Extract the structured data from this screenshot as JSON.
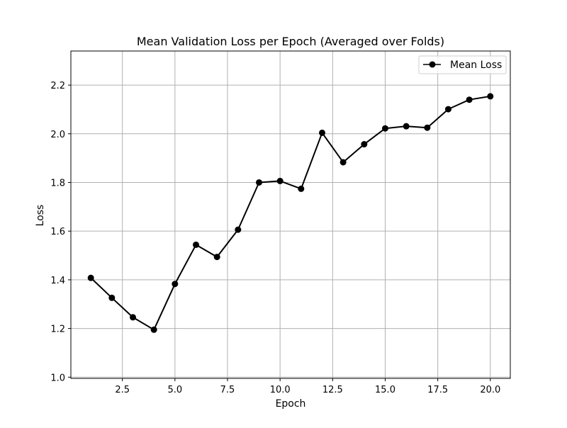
{
  "chart_data": {
    "type": "line",
    "title": "Mean Validation Loss per Epoch (Averaged over Folds)",
    "xlabel": "Epoch",
    "ylabel": "Loss",
    "xlim": [
      0.05,
      20.95
    ],
    "ylim": [
      0.995,
      2.34
    ],
    "xticks": [
      2.5,
      5.0,
      7.5,
      10.0,
      12.5,
      15.0,
      17.5,
      20.0
    ],
    "xtick_labels": [
      "2.5",
      "5.0",
      "7.5",
      "10.0",
      "12.5",
      "15.0",
      "17.5",
      "20.0"
    ],
    "yticks": [
      1.0,
      1.2,
      1.4,
      1.6,
      1.8,
      2.0,
      2.2
    ],
    "ytick_labels": [
      "1.0",
      "1.2",
      "1.4",
      "1.6",
      "1.8",
      "2.0",
      "2.2"
    ],
    "grid": true,
    "legend_position": "upper-right",
    "x": [
      1,
      2,
      3,
      4,
      5,
      6,
      7,
      8,
      9,
      10,
      11,
      12,
      13,
      14,
      15,
      16,
      17,
      18,
      19,
      20
    ],
    "series": [
      {
        "name": "Mean Loss",
        "color": "#000000",
        "marker": "circle",
        "values": [
          1.408,
          1.326,
          1.246,
          1.195,
          1.383,
          1.544,
          1.494,
          1.606,
          1.8,
          1.806,
          1.774,
          2.004,
          1.883,
          1.957,
          2.022,
          2.031,
          2.025,
          2.101,
          2.14,
          2.154
        ]
      }
    ]
  }
}
